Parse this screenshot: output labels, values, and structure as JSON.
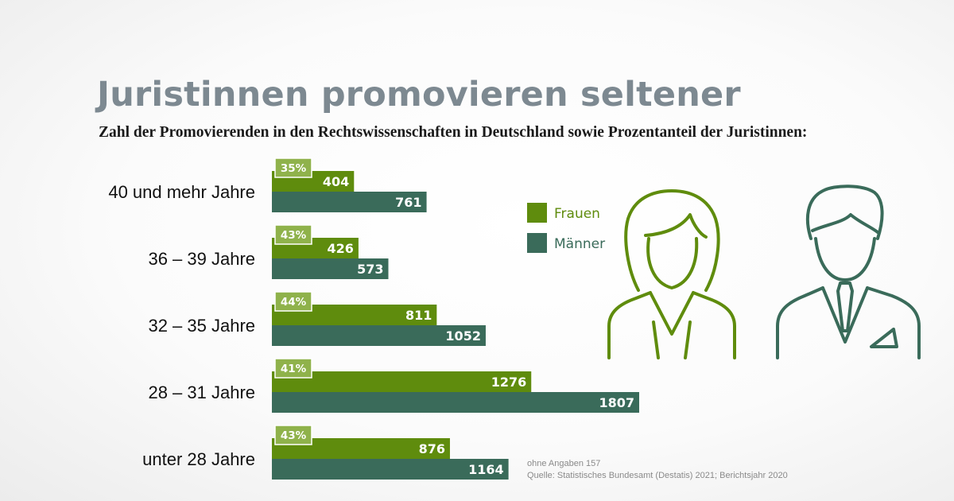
{
  "title": "Juristinnen promovieren seltener",
  "subtitle": "Zahl der Promovierenden in den Rechtswissenschaften in Deutschland sowie Prozentanteil der Juristinnen:",
  "legend": {
    "women_label": "Frauen",
    "men_label": "Männer"
  },
  "notes": {
    "missing": "ohne Angaben 157",
    "source": "Quelle: Statistisches Bundesamt (Destatis) 2021; Berichtsjahr 2020"
  },
  "colors": {
    "women": "#5f8c0d",
    "men": "#3a6b5a",
    "percent_badge": "#8fb24b",
    "title": "#7d8991"
  },
  "icons": [
    "woman-icon",
    "man-icon"
  ],
  "chart_data": {
    "type": "bar",
    "orientation": "horizontal",
    "categories": [
      "40 und mehr Jahre",
      "36 – 39 Jahre",
      "32 – 35 Jahre",
      "28 – 31 Jahre",
      "unter 28 Jahre"
    ],
    "series": [
      {
        "name": "Frauen",
        "values": [
          404,
          426,
          811,
          1276,
          876
        ]
      },
      {
        "name": "Männer",
        "values": [
          761,
          573,
          1052,
          1807,
          1164
        ]
      }
    ],
    "women_share_labels": [
      "35%",
      "43%",
      "44%",
      "41%",
      "43%"
    ],
    "legend_position": "right",
    "grid": false
  }
}
